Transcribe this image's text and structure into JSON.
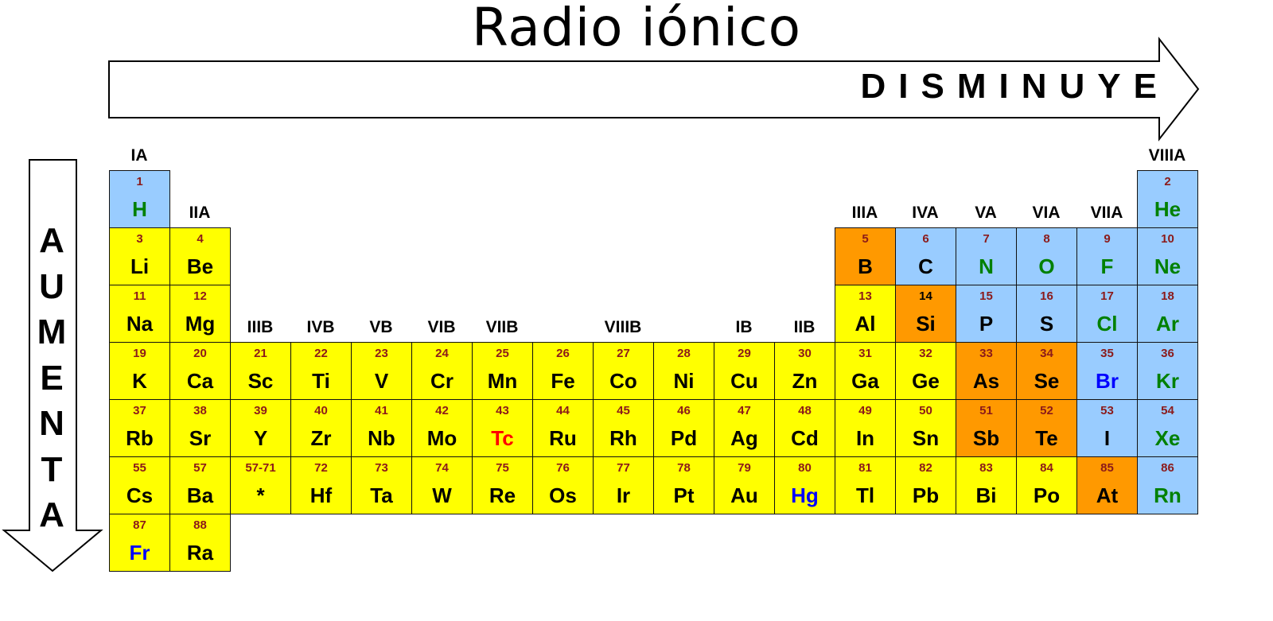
{
  "title": "Radio iónico",
  "horizontal_label": "DISMINUYE",
  "vertical_label": [
    "A",
    "U",
    "M",
    "E",
    "N",
    "T",
    "A"
  ],
  "colors": {
    "metal": "#ffff00",
    "metalloid": "#ff9900",
    "nonmetal": "#99ccff",
    "text_black": "#000000",
    "text_green": "#008000",
    "text_blue": "#0000ff",
    "text_red": "#ff0000",
    "number": "#8b1a1a"
  },
  "groups": [
    {
      "label": "IA",
      "col": 1,
      "row": 0
    },
    {
      "label": "IIA",
      "col": 2,
      "row": 1
    },
    {
      "label": "IIIB",
      "col": 3,
      "row": 3
    },
    {
      "label": "IVB",
      "col": 4,
      "row": 3
    },
    {
      "label": "VB",
      "col": 5,
      "row": 3
    },
    {
      "label": "VIB",
      "col": 6,
      "row": 3
    },
    {
      "label": "VIIB",
      "col": 7,
      "row": 3
    },
    {
      "label": "VIIIB",
      "col": 9,
      "row": 3
    },
    {
      "label": "IB",
      "col": 11,
      "row": 3
    },
    {
      "label": "IIB",
      "col": 12,
      "row": 3
    },
    {
      "label": "IIIA",
      "col": 13,
      "row": 1
    },
    {
      "label": "IVA",
      "col": 14,
      "row": 1
    },
    {
      "label": "VA",
      "col": 15,
      "row": 1
    },
    {
      "label": "VIA",
      "col": 16,
      "row": 1
    },
    {
      "label": "VIIA",
      "col": 17,
      "row": 1
    },
    {
      "label": "VIIIA",
      "col": 18,
      "row": 0
    }
  ],
  "elements": [
    {
      "n": "1",
      "s": "H",
      "col": 1,
      "row": 1,
      "bg": "nonmetal",
      "fg": "text_green"
    },
    {
      "n": "2",
      "s": "He",
      "col": 18,
      "row": 1,
      "bg": "nonmetal",
      "fg": "text_green"
    },
    {
      "n": "3",
      "s": "Li",
      "col": 1,
      "row": 2,
      "bg": "metal",
      "fg": "text_black"
    },
    {
      "n": "4",
      "s": "Be",
      "col": 2,
      "row": 2,
      "bg": "metal",
      "fg": "text_black"
    },
    {
      "n": "5",
      "s": "B",
      "col": 13,
      "row": 2,
      "bg": "metalloid",
      "fg": "text_black"
    },
    {
      "n": "6",
      "s": "C",
      "col": 14,
      "row": 2,
      "bg": "nonmetal",
      "fg": "text_black"
    },
    {
      "n": "7",
      "s": "N",
      "col": 15,
      "row": 2,
      "bg": "nonmetal",
      "fg": "text_green"
    },
    {
      "n": "8",
      "s": "O",
      "col": 16,
      "row": 2,
      "bg": "nonmetal",
      "fg": "text_green"
    },
    {
      "n": "9",
      "s": "F",
      "col": 17,
      "row": 2,
      "bg": "nonmetal",
      "fg": "text_green"
    },
    {
      "n": "10",
      "s": "Ne",
      "col": 18,
      "row": 2,
      "bg": "nonmetal",
      "fg": "text_green"
    },
    {
      "n": "11",
      "s": "Na",
      "col": 1,
      "row": 3,
      "bg": "metal",
      "fg": "text_black"
    },
    {
      "n": "12",
      "s": "Mg",
      "col": 2,
      "row": 3,
      "bg": "metal",
      "fg": "text_black"
    },
    {
      "n": "13",
      "s": "Al",
      "col": 13,
      "row": 3,
      "bg": "metal",
      "fg": "text_black"
    },
    {
      "n": "14",
      "s": "Si",
      "col": 14,
      "row": 3,
      "bg": "metalloid",
      "fg": "text_black"
    },
    {
      "n": "15",
      "s": "P",
      "col": 15,
      "row": 3,
      "bg": "nonmetal",
      "fg": "text_black"
    },
    {
      "n": "16",
      "s": "S",
      "col": 16,
      "row": 3,
      "bg": "nonmetal",
      "fg": "text_black"
    },
    {
      "n": "17",
      "s": "Cl",
      "col": 17,
      "row": 3,
      "bg": "nonmetal",
      "fg": "text_green"
    },
    {
      "n": "18",
      "s": "Ar",
      "col": 18,
      "row": 3,
      "bg": "nonmetal",
      "fg": "text_green"
    },
    {
      "n": "19",
      "s": "K",
      "col": 1,
      "row": 4,
      "bg": "metal",
      "fg": "text_black"
    },
    {
      "n": "20",
      "s": "Ca",
      "col": 2,
      "row": 4,
      "bg": "metal",
      "fg": "text_black"
    },
    {
      "n": "21",
      "s": "Sc",
      "col": 3,
      "row": 4,
      "bg": "metal",
      "fg": "text_black"
    },
    {
      "n": "22",
      "s": "Ti",
      "col": 4,
      "row": 4,
      "bg": "metal",
      "fg": "text_black"
    },
    {
      "n": "23",
      "s": "V",
      "col": 5,
      "row": 4,
      "bg": "metal",
      "fg": "text_black"
    },
    {
      "n": "24",
      "s": "Cr",
      "col": 6,
      "row": 4,
      "bg": "metal",
      "fg": "text_black"
    },
    {
      "n": "25",
      "s": "Mn",
      "col": 7,
      "row": 4,
      "bg": "metal",
      "fg": "text_black"
    },
    {
      "n": "26",
      "s": "Fe",
      "col": 8,
      "row": 4,
      "bg": "metal",
      "fg": "text_black"
    },
    {
      "n": "27",
      "s": "Co",
      "col": 9,
      "row": 4,
      "bg": "metal",
      "fg": "text_black"
    },
    {
      "n": "28",
      "s": "Ni",
      "col": 10,
      "row": 4,
      "bg": "metal",
      "fg": "text_black"
    },
    {
      "n": "29",
      "s": "Cu",
      "col": 11,
      "row": 4,
      "bg": "metal",
      "fg": "text_black"
    },
    {
      "n": "30",
      "s": "Zn",
      "col": 12,
      "row": 4,
      "bg": "metal",
      "fg": "text_black"
    },
    {
      "n": "31",
      "s": "Ga",
      "col": 13,
      "row": 4,
      "bg": "metal",
      "fg": "text_black"
    },
    {
      "n": "32",
      "s": "Ge",
      "col": 14,
      "row": 4,
      "bg": "metal",
      "fg": "text_black"
    },
    {
      "n": "33",
      "s": "As",
      "col": 15,
      "row": 4,
      "bg": "metalloid",
      "fg": "text_black"
    },
    {
      "n": "34",
      "s": "Se",
      "col": 16,
      "row": 4,
      "bg": "metalloid",
      "fg": "text_black"
    },
    {
      "n": "35",
      "s": "Br",
      "col": 17,
      "row": 4,
      "bg": "nonmetal",
      "fg": "text_blue"
    },
    {
      "n": "36",
      "s": "Kr",
      "col": 18,
      "row": 4,
      "bg": "nonmetal",
      "fg": "text_green"
    },
    {
      "n": "37",
      "s": "Rb",
      "col": 1,
      "row": 5,
      "bg": "metal",
      "fg": "text_black"
    },
    {
      "n": "38",
      "s": "Sr",
      "col": 2,
      "row": 5,
      "bg": "metal",
      "fg": "text_black"
    },
    {
      "n": "39",
      "s": "Y",
      "col": 3,
      "row": 5,
      "bg": "metal",
      "fg": "text_black"
    },
    {
      "n": "40",
      "s": "Zr",
      "col": 4,
      "row": 5,
      "bg": "metal",
      "fg": "text_black"
    },
    {
      "n": "41",
      "s": "Nb",
      "col": 5,
      "row": 5,
      "bg": "metal",
      "fg": "text_black"
    },
    {
      "n": "42",
      "s": "Mo",
      "col": 6,
      "row": 5,
      "bg": "metal",
      "fg": "text_black"
    },
    {
      "n": "43",
      "s": "Tc",
      "col": 7,
      "row": 5,
      "bg": "metal",
      "fg": "text_red"
    },
    {
      "n": "44",
      "s": "Ru",
      "col": 8,
      "row": 5,
      "bg": "metal",
      "fg": "text_black"
    },
    {
      "n": "45",
      "s": "Rh",
      "col": 9,
      "row": 5,
      "bg": "metal",
      "fg": "text_black"
    },
    {
      "n": "46",
      "s": "Pd",
      "col": 10,
      "row": 5,
      "bg": "metal",
      "fg": "text_black"
    },
    {
      "n": "47",
      "s": "Ag",
      "col": 11,
      "row": 5,
      "bg": "metal",
      "fg": "text_black"
    },
    {
      "n": "48",
      "s": "Cd",
      "col": 12,
      "row": 5,
      "bg": "metal",
      "fg": "text_black"
    },
    {
      "n": "49",
      "s": "In",
      "col": 13,
      "row": 5,
      "bg": "metal",
      "fg": "text_black"
    },
    {
      "n": "50",
      "s": "Sn",
      "col": 14,
      "row": 5,
      "bg": "metal",
      "fg": "text_black"
    },
    {
      "n": "51",
      "s": "Sb",
      "col": 15,
      "row": 5,
      "bg": "metalloid",
      "fg": "text_black"
    },
    {
      "n": "52",
      "s": "Te",
      "col": 16,
      "row": 5,
      "bg": "metalloid",
      "fg": "text_black"
    },
    {
      "n": "53",
      "s": "I",
      "col": 17,
      "row": 5,
      "bg": "nonmetal",
      "fg": "text_black"
    },
    {
      "n": "54",
      "s": "Xe",
      "col": 18,
      "row": 5,
      "bg": "nonmetal",
      "fg": "text_green"
    },
    {
      "n": "55",
      "s": "Cs",
      "col": 1,
      "row": 6,
      "bg": "metal",
      "fg": "text_black"
    },
    {
      "n": "57",
      "s": "Ba",
      "col": 2,
      "row": 6,
      "bg": "metal",
      "fg": "text_black"
    },
    {
      "n": "57-71",
      "s": "*",
      "col": 3,
      "row": 6,
      "bg": "metal",
      "fg": "text_black"
    },
    {
      "n": "72",
      "s": "Hf",
      "col": 4,
      "row": 6,
      "bg": "metal",
      "fg": "text_black"
    },
    {
      "n": "73",
      "s": "Ta",
      "col": 5,
      "row": 6,
      "bg": "metal",
      "fg": "text_black"
    },
    {
      "n": "74",
      "s": "W",
      "col": 6,
      "row": 6,
      "bg": "metal",
      "fg": "text_black"
    },
    {
      "n": "75",
      "s": "Re",
      "col": 7,
      "row": 6,
      "bg": "metal",
      "fg": "text_black"
    },
    {
      "n": "76",
      "s": "Os",
      "col": 8,
      "row": 6,
      "bg": "metal",
      "fg": "text_black"
    },
    {
      "n": "77",
      "s": "Ir",
      "col": 9,
      "row": 6,
      "bg": "metal",
      "fg": "text_black"
    },
    {
      "n": "78",
      "s": "Pt",
      "col": 10,
      "row": 6,
      "bg": "metal",
      "fg": "text_black"
    },
    {
      "n": "79",
      "s": "Au",
      "col": 11,
      "row": 6,
      "bg": "metal",
      "fg": "text_black"
    },
    {
      "n": "80",
      "s": "Hg",
      "col": 12,
      "row": 6,
      "bg": "metal",
      "fg": "text_blue"
    },
    {
      "n": "81",
      "s": "Tl",
      "col": 13,
      "row": 6,
      "bg": "metal",
      "fg": "text_black"
    },
    {
      "n": "82",
      "s": "Pb",
      "col": 14,
      "row": 6,
      "bg": "metal",
      "fg": "text_black"
    },
    {
      "n": "83",
      "s": "Bi",
      "col": 15,
      "row": 6,
      "bg": "metal",
      "fg": "text_black"
    },
    {
      "n": "84",
      "s": "Po",
      "col": 16,
      "row": 6,
      "bg": "metal",
      "fg": "text_black"
    },
    {
      "n": "85",
      "s": "At",
      "col": 17,
      "row": 6,
      "bg": "metalloid",
      "fg": "text_black"
    },
    {
      "n": "86",
      "s": "Rn",
      "col": 18,
      "row": 6,
      "bg": "nonmetal",
      "fg": "text_green"
    },
    {
      "n": "87",
      "s": "Fr",
      "col": 1,
      "row": 7,
      "bg": "metal",
      "fg": "text_blue"
    },
    {
      "n": "88",
      "s": "Ra",
      "col": 2,
      "row": 7,
      "bg": "metal",
      "fg": "text_black"
    }
  ]
}
